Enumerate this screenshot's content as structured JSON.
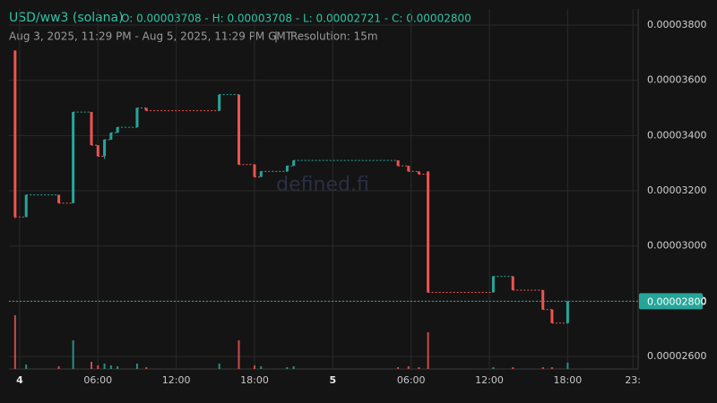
{
  "chart_data": {
    "type": "candlestick",
    "title": "USD/ww3 (solana)",
    "ohlc_text": "O: 0.00003708 - H: 0.00003708 - L: 0.00002721 - C: 0.00002800",
    "date_range": "Aug 3, 2025, 11:29 PM - Aug 5, 2025, 11:29 PM GMT",
    "separator": "|",
    "resolution": "Resolution: 15m",
    "watermark": "defined.fi",
    "up_color": "#26a69a",
    "down_color": "#ef5350",
    "x": [
      -0.35,
      0.5,
      3.0,
      4.1,
      5.5,
      6.0,
      6.5,
      7.0,
      7.5,
      9.0,
      9.7,
      15.3,
      16.8,
      18.0,
      18.5,
      20.5,
      21.0,
      29.0,
      29.8,
      30.6,
      31.3,
      36.3,
      37.8,
      40.1,
      40.8,
      42.0
    ],
    "open": [
      3.708e-05,
      3.105e-05,
      3.185e-05,
      3.155e-05,
      3.485e-05,
      3.365e-05,
      3.325e-05,
      3.385e-05,
      3.41e-05,
      3.43e-05,
      3.5e-05,
      3.49e-05,
      3.548e-05,
      3.295e-05,
      3.25e-05,
      3.27e-05,
      3.29e-05,
      3.31e-05,
      3.29e-05,
      3.27e-05,
      3.27e-05,
      2.832e-05,
      2.89e-05,
      2.84e-05,
      2.77e-05,
      2.721e-05
    ],
    "high": [
      3.708e-05,
      3.185e-05,
      3.185e-05,
      3.485e-05,
      3.485e-05,
      3.365e-05,
      3.385e-05,
      3.41e-05,
      3.43e-05,
      3.5e-05,
      3.5e-05,
      3.548e-05,
      3.548e-05,
      3.295e-05,
      3.27e-05,
      3.29e-05,
      3.31e-05,
      3.31e-05,
      3.29e-05,
      3.27e-05,
      3.27e-05,
      2.89e-05,
      2.89e-05,
      2.84e-05,
      2.77e-05,
      2.8e-05
    ],
    "low": [
      3.1e-05,
      3.105e-05,
      3.155e-05,
      3.155e-05,
      3.365e-05,
      3.325e-05,
      3.315e-05,
      3.385e-05,
      3.41e-05,
      3.43e-05,
      3.49e-05,
      3.49e-05,
      3.295e-05,
      3.25e-05,
      3.25e-05,
      3.27e-05,
      3.29e-05,
      3.29e-05,
      3.27e-05,
      3.26e-05,
      2.832e-05,
      2.832e-05,
      2.84e-05,
      2.77e-05,
      2.721e-05,
      2.721e-05
    ],
    "close": [
      3.105e-05,
      3.185e-05,
      3.155e-05,
      3.485e-05,
      3.365e-05,
      3.325e-05,
      3.385e-05,
      3.41e-05,
      3.43e-05,
      3.5e-05,
      3.49e-05,
      3.548e-05,
      3.295e-05,
      3.25e-05,
      3.27e-05,
      3.29e-05,
      3.31e-05,
      3.29e-05,
      3.27e-05,
      3.26e-05,
      2.832e-05,
      2.89e-05,
      2.84e-05,
      2.77e-05,
      2.721e-05,
      2.8e-05
    ],
    "volumes": [
      60,
      5,
      3,
      32,
      8,
      4,
      6,
      4,
      3,
      6,
      2,
      6,
      32,
      4,
      3,
      2,
      3,
      2,
      3,
      2,
      41,
      2,
      2,
      2,
      2,
      7
    ],
    "xlim": [
      -0.82,
      47.4
    ],
    "xticks": [
      {
        "value": 0,
        "label": "4"
      },
      {
        "value": 6,
        "label": "06:00"
      },
      {
        "value": 12,
        "label": "12:00"
      },
      {
        "value": 18,
        "label": "18:00"
      },
      {
        "value": 24,
        "label": "5"
      },
      {
        "value": 30,
        "label": "06:00"
      },
      {
        "value": 36,
        "label": "12:00"
      },
      {
        "value": 42,
        "label": "18:00"
      },
      {
        "value": 47,
        "label": "23:"
      }
    ],
    "ylim": [
      2.5547e-05,
      3.8907e-05
    ],
    "yticks": [
      {
        "value": 2.6e-05,
        "label": "0.00002600"
      },
      {
        "value": 2.8e-05,
        "label": "0.00002800"
      },
      {
        "value": 3e-05,
        "label": "0.00003000"
      },
      {
        "value": 3.2e-05,
        "label": "0.00003200"
      },
      {
        "value": 3.4e-05,
        "label": "0.00003400"
      },
      {
        "value": 3.6e-05,
        "label": "0.00003600"
      },
      {
        "value": 3.8e-05,
        "label": "0.00003800"
      }
    ],
    "last_price": 2.8e-05,
    "last_price_label": "0.00002800",
    "grid": true
  }
}
